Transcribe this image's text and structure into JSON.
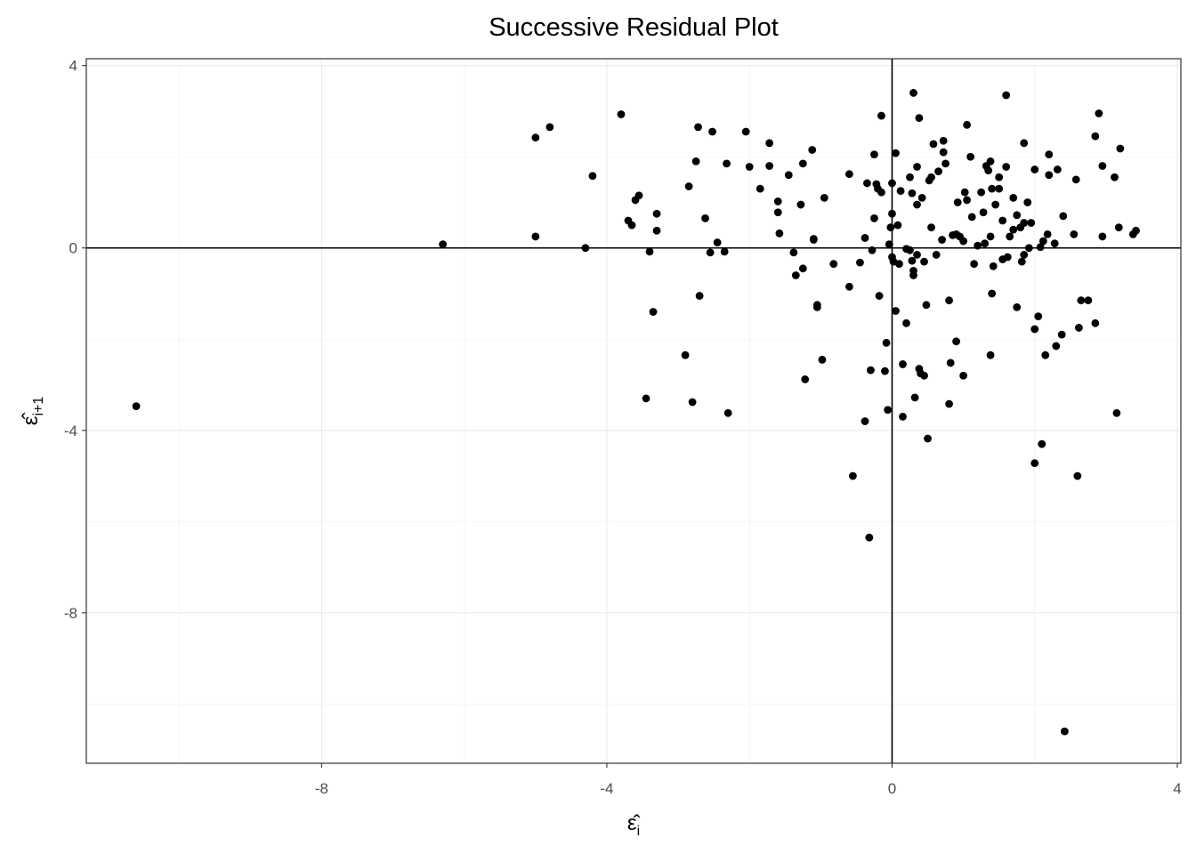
{
  "chart_data": {
    "type": "scatter",
    "title": "Successive Residual Plot",
    "xlabel": "ε̂",
    "xlabel_sub": "i",
    "ylabel": "ε̂",
    "ylabel_sub": "i+1",
    "xlim": [
      -11.3,
      4.05
    ],
    "ylim": [
      -11.3,
      4.15
    ],
    "x_ticks": [
      -8,
      -4,
      0,
      4
    ],
    "x_tick_labels": [
      "-8",
      "-4",
      "0",
      "4"
    ],
    "y_ticks": [
      4,
      0,
      -4,
      -8
    ],
    "y_tick_labels": [
      "4",
      "0",
      "-4",
      "-8"
    ],
    "x_minor": [
      -10,
      -6,
      -2,
      2
    ],
    "y_minor": [
      2,
      -2,
      -6,
      -10
    ],
    "reference_lines": {
      "h": 0,
      "v": 0
    },
    "grid": true,
    "point_color": "#000000",
    "points": [
      [
        -10.6,
        -3.47
      ],
      [
        -6.3,
        0.08
      ],
      [
        -5.0,
        2.42
      ],
      [
        -5.0,
        0.25
      ],
      [
        -4.8,
        2.65
      ],
      [
        -4.3,
        0.0
      ],
      [
        -4.2,
        1.58
      ],
      [
        -3.8,
        2.93
      ],
      [
        -3.7,
        0.6
      ],
      [
        -3.65,
        0.5
      ],
      [
        -3.6,
        1.05
      ],
      [
        -3.55,
        1.15
      ],
      [
        -3.45,
        -3.3
      ],
      [
        -3.4,
        -0.08
      ],
      [
        -3.35,
        -1.4
      ],
      [
        -3.3,
        0.75
      ],
      [
        -3.3,
        0.38
      ],
      [
        -2.9,
        -2.35
      ],
      [
        -2.85,
        1.35
      ],
      [
        -2.8,
        -3.38
      ],
      [
        -2.75,
        1.9
      ],
      [
        -2.72,
        2.65
      ],
      [
        -2.7,
        -1.05
      ],
      [
        -2.62,
        0.65
      ],
      [
        -2.55,
        -0.1
      ],
      [
        -2.52,
        2.55
      ],
      [
        -2.45,
        0.12
      ],
      [
        -2.35,
        -0.08
      ],
      [
        -2.32,
        1.85
      ],
      [
        -2.3,
        -3.62
      ],
      [
        -2.05,
        2.55
      ],
      [
        -2.0,
        1.78
      ],
      [
        -1.85,
        1.3
      ],
      [
        -1.72,
        2.3
      ],
      [
        -1.72,
        1.8
      ],
      [
        -1.6,
        1.02
      ],
      [
        -1.6,
        0.78
      ],
      [
        -1.58,
        0.32
      ],
      [
        -1.45,
        1.6
      ],
      [
        -1.38,
        -0.1
      ],
      [
        -1.35,
        -0.6
      ],
      [
        -1.28,
        0.95
      ],
      [
        -1.25,
        1.85
      ],
      [
        -1.25,
        -0.45
      ],
      [
        -1.22,
        -2.88
      ],
      [
        -1.12,
        2.15
      ],
      [
        -1.1,
        0.18
      ],
      [
        -1.1,
        0.2
      ],
      [
        -1.05,
        -1.25
      ],
      [
        -1.05,
        -1.3
      ],
      [
        -0.98,
        -2.45
      ],
      [
        -0.95,
        1.1
      ],
      [
        -0.82,
        -0.35
      ],
      [
        -0.6,
        -0.85
      ],
      [
        -0.6,
        1.62
      ],
      [
        -0.55,
        -5.0
      ],
      [
        -0.45,
        -0.32
      ],
      [
        -0.38,
        0.22
      ],
      [
        -0.38,
        -3.8
      ],
      [
        -0.35,
        1.42
      ],
      [
        -0.32,
        -6.35
      ],
      [
        -0.3,
        -2.68
      ],
      [
        -0.28,
        -0.05
      ],
      [
        -0.25,
        2.05
      ],
      [
        -0.25,
        0.65
      ],
      [
        -0.22,
        1.4
      ],
      [
        -0.2,
        1.3
      ],
      [
        -0.18,
        -1.05
      ],
      [
        -0.15,
        1.22
      ],
      [
        -0.15,
        2.9
      ],
      [
        -0.1,
        -2.7
      ],
      [
        -0.08,
        -2.08
      ],
      [
        -0.06,
        -3.55
      ],
      [
        -0.04,
        0.08
      ],
      [
        -0.02,
        0.45
      ],
      [
        0.0,
        0.75
      ],
      [
        0.0,
        1.42
      ],
      [
        0.0,
        -0.2
      ],
      [
        0.02,
        -0.3
      ],
      [
        0.05,
        2.08
      ],
      [
        0.05,
        -1.38
      ],
      [
        0.08,
        0.5
      ],
      [
        0.1,
        -0.35
      ],
      [
        0.12,
        1.25
      ],
      [
        0.15,
        -3.7
      ],
      [
        0.15,
        -2.55
      ],
      [
        0.2,
        -1.65
      ],
      [
        0.2,
        -0.02
      ],
      [
        0.25,
        1.55
      ],
      [
        0.25,
        -0.05
      ],
      [
        0.28,
        -0.28
      ],
      [
        0.28,
        1.2
      ],
      [
        0.3,
        -0.5
      ],
      [
        0.3,
        -0.6
      ],
      [
        0.3,
        3.4
      ],
      [
        0.32,
        -3.28
      ],
      [
        0.35,
        0.95
      ],
      [
        0.35,
        -0.15
      ],
      [
        0.35,
        1.78
      ],
      [
        0.38,
        -2.65
      ],
      [
        0.38,
        2.85
      ],
      [
        0.4,
        -2.75
      ],
      [
        0.42,
        1.1
      ],
      [
        0.45,
        -0.3
      ],
      [
        0.45,
        -2.8
      ],
      [
        0.48,
        -1.25
      ],
      [
        0.5,
        -4.18
      ],
      [
        0.52,
        1.48
      ],
      [
        0.55,
        0.45
      ],
      [
        0.55,
        1.55
      ],
      [
        0.58,
        2.28
      ],
      [
        0.62,
        -0.15
      ],
      [
        0.65,
        1.68
      ],
      [
        0.7,
        0.18
      ],
      [
        0.72,
        2.1
      ],
      [
        0.72,
        2.35
      ],
      [
        0.75,
        1.85
      ],
      [
        0.8,
        -3.42
      ],
      [
        0.8,
        -1.15
      ],
      [
        0.82,
        -2.52
      ],
      [
        0.85,
        0.28
      ],
      [
        0.9,
        0.3
      ],
      [
        0.9,
        -2.05
      ],
      [
        0.92,
        1.0
      ],
      [
        0.95,
        0.25
      ],
      [
        1.0,
        -2.8
      ],
      [
        1.0,
        0.15
      ],
      [
        1.02,
        1.22
      ],
      [
        1.05,
        2.7
      ],
      [
        1.05,
        1.05
      ],
      [
        1.1,
        2.0
      ],
      [
        1.12,
        0.68
      ],
      [
        1.15,
        -0.35
      ],
      [
        1.2,
        0.05
      ],
      [
        1.25,
        1.22
      ],
      [
        1.28,
        0.78
      ],
      [
        1.3,
        0.1
      ],
      [
        1.32,
        1.8
      ],
      [
        1.35,
        1.7
      ],
      [
        1.38,
        -2.35
      ],
      [
        1.38,
        1.9
      ],
      [
        1.38,
        0.25
      ],
      [
        1.4,
        1.3
      ],
      [
        1.4,
        -1.0
      ],
      [
        1.42,
        -0.4
      ],
      [
        1.45,
        0.95
      ],
      [
        1.5,
        1.3
      ],
      [
        1.5,
        1.55
      ],
      [
        1.55,
        -0.25
      ],
      [
        1.55,
        0.6
      ],
      [
        1.6,
        1.78
      ],
      [
        1.6,
        3.35
      ],
      [
        1.62,
        -0.2
      ],
      [
        1.65,
        0.25
      ],
      [
        1.7,
        1.1
      ],
      [
        1.7,
        0.4
      ],
      [
        1.75,
        0.72
      ],
      [
        1.75,
        -1.3
      ],
      [
        1.8,
        0.45
      ],
      [
        1.82,
        -0.3
      ],
      [
        1.85,
        2.3
      ],
      [
        1.85,
        0.55
      ],
      [
        1.85,
        -0.15
      ],
      [
        1.9,
        1.0
      ],
      [
        1.92,
        0.0
      ],
      [
        1.95,
        0.55
      ],
      [
        2.0,
        1.72
      ],
      [
        2.0,
        -1.78
      ],
      [
        2.0,
        -4.72
      ],
      [
        2.05,
        -1.5
      ],
      [
        2.08,
        0.02
      ],
      [
        2.1,
        -4.3
      ],
      [
        2.12,
        0.15
      ],
      [
        2.15,
        -2.35
      ],
      [
        2.18,
        0.3
      ],
      [
        2.2,
        2.05
      ],
      [
        2.2,
        1.6
      ],
      [
        2.28,
        0.1
      ],
      [
        2.3,
        -2.15
      ],
      [
        2.32,
        1.72
      ],
      [
        2.38,
        -1.9
      ],
      [
        2.4,
        0.7
      ],
      [
        2.42,
        -10.6
      ],
      [
        2.55,
        0.3
      ],
      [
        2.58,
        1.5
      ],
      [
        2.6,
        -5.0
      ],
      [
        2.62,
        -1.75
      ],
      [
        2.65,
        -1.15
      ],
      [
        2.75,
        -1.15
      ],
      [
        2.85,
        -1.65
      ],
      [
        2.85,
        2.45
      ],
      [
        2.9,
        2.95
      ],
      [
        2.95,
        0.25
      ],
      [
        2.95,
        1.8
      ],
      [
        3.12,
        1.55
      ],
      [
        3.15,
        -3.62
      ],
      [
        3.18,
        0.45
      ],
      [
        3.2,
        2.18
      ],
      [
        3.38,
        0.3
      ],
      [
        3.42,
        0.38
      ]
    ]
  }
}
